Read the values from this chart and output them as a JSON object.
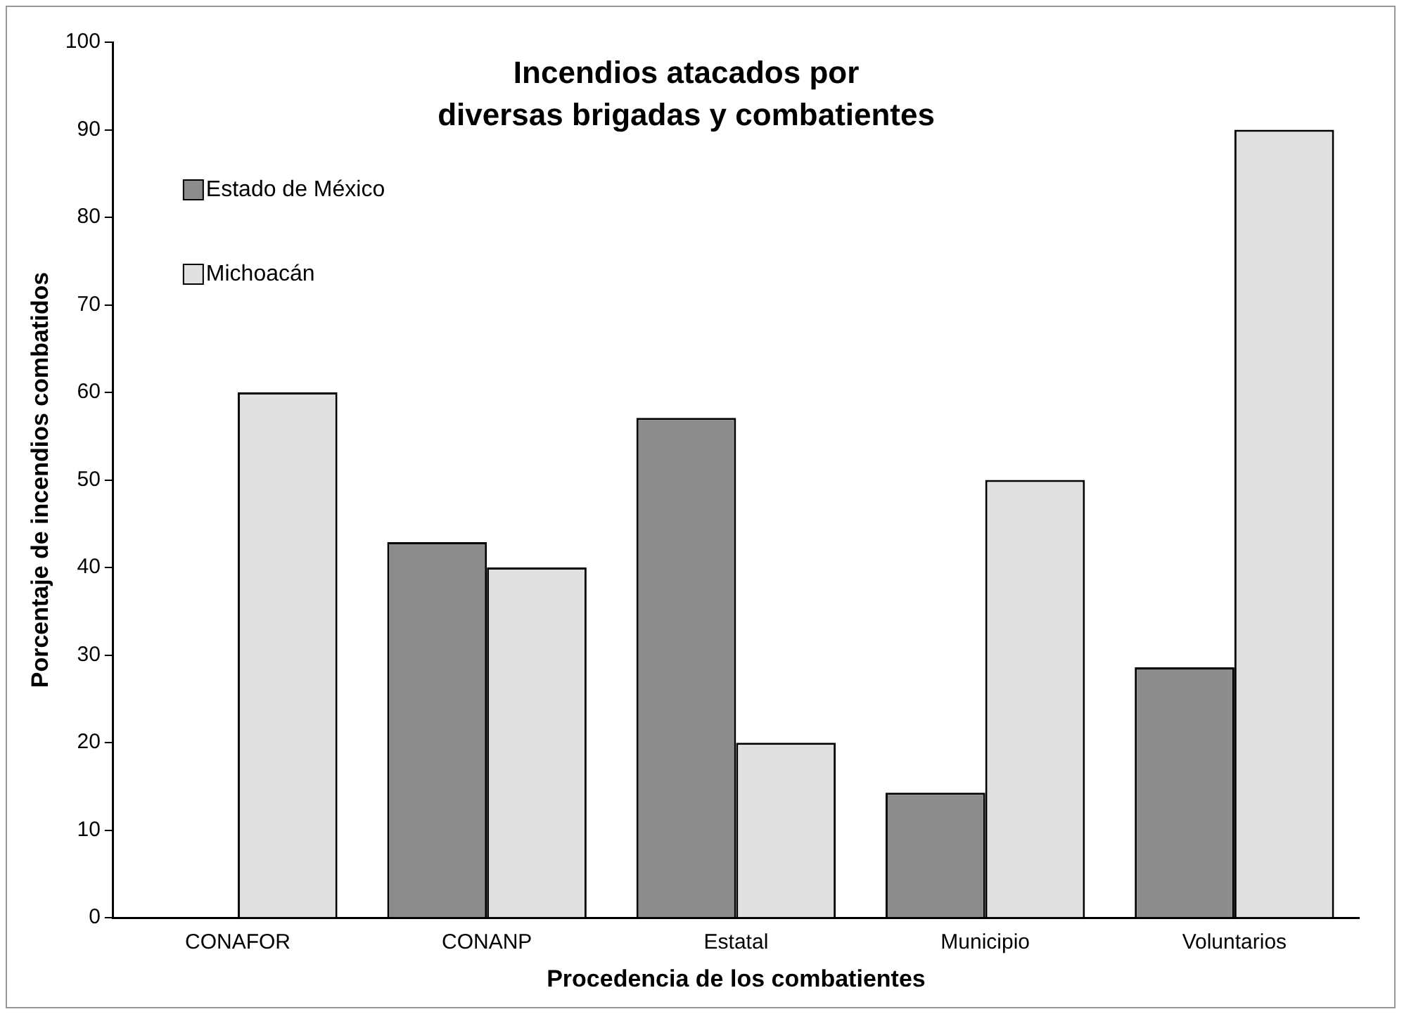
{
  "chart_data": {
    "type": "bar",
    "title": "Incendios atacados por\ndiversas brigadas y combatientes",
    "xlabel": "Procedencia de los combatientes",
    "ylabel": "Porcentaje de incendios combatidos",
    "categories": [
      "CONAFOR",
      "CONANP",
      "Estatal",
      "Municipio",
      "Voluntarios"
    ],
    "series": [
      {
        "name": "Estado de México",
        "color": "#8c8c8c",
        "values": [
          0,
          42.9,
          57.1,
          14.3,
          28.6
        ]
      },
      {
        "name": "Michoacán",
        "color": "#e0e0e0",
        "values": [
          60,
          40,
          20,
          50,
          90
        ]
      }
    ],
    "ylim": [
      0,
      100
    ],
    "yticks": [
      0,
      10,
      20,
      30,
      40,
      50,
      60,
      70,
      80,
      90,
      100
    ],
    "grid": false,
    "legend": "top left"
  }
}
